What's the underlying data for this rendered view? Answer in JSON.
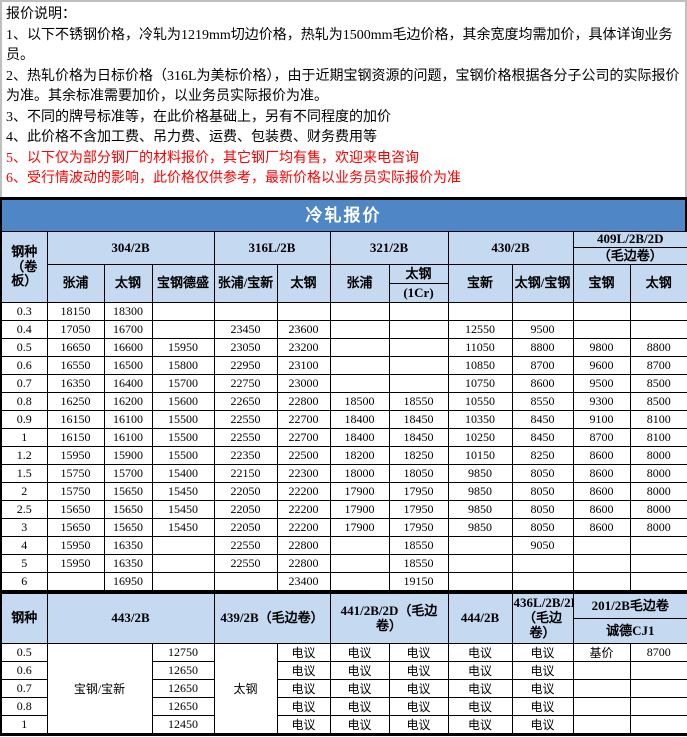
{
  "title": "冷轧报价",
  "colors": {
    "title_bg": "#4e86c6",
    "header_bg": "#c5d9f1",
    "warning_red": "#ff0000"
  },
  "notes": {
    "heading": "报价说明：",
    "n1": "1、以下不锈钢价格，冷轧为1219mm切边价格，热轧为1500mm毛边价格，其余宽度均需加价，具体详询业务员。",
    "n2": "2、热轧价格为日标价格（316L为美标价格），由于近期宝钢资源的问题，宝钢价格根据各分子公司的实际报价为准。其余标准需要加价，以业务员实际报价为准。",
    "n3": "3、不同的牌号标准等，在此价格基础上，另有不同程度的加价",
    "n4": "4、此价格不含加工费、吊力费、运费、包装费、财务费用等",
    "n5": "5、以下仅为部分钢厂的材料报价，其它钢厂均有售，欢迎来电咨询",
    "n6": "6、受行情波动的影响，此价格仅供参考，最新价格以业务员实际报价为准"
  },
  "t1": {
    "corner": "钢种（卷板）",
    "g304": "304/2B",
    "g316": "316L/2B",
    "g321": "321/2B",
    "g430": "430/2B",
    "g409": "409L/2B/2D",
    "g409_sub": "（毛边卷）",
    "m1": "张浦",
    "m2": "太钢",
    "m3": "宝钢德盛",
    "m4": "张浦/宝新",
    "m5": "太钢",
    "m6": "张浦",
    "m7": "太钢",
    "m7_sub": "(1Cr)",
    "m8": "宝新",
    "m9": "太钢/宝钢",
    "m10": "宝钢",
    "m11": "太钢",
    "rows": [
      [
        "0.3",
        "18150",
        "18300",
        "",
        "",
        "",
        "",
        "",
        "",
        "",
        "",
        ""
      ],
      [
        "0.4",
        "17050",
        "16700",
        "",
        "23450",
        "23600",
        "",
        "",
        "12550",
        "9500",
        "",
        ""
      ],
      [
        "0.5",
        "16650",
        "16600",
        "15950",
        "23050",
        "23200",
        "",
        "",
        "11050",
        "8800",
        "9800",
        "8800"
      ],
      [
        "0.6",
        "16550",
        "16500",
        "15800",
        "22950",
        "23100",
        "",
        "",
        "10850",
        "8700",
        "9600",
        "8700"
      ],
      [
        "0.7",
        "16350",
        "16400",
        "15700",
        "22750",
        "23000",
        "",
        "",
        "10750",
        "8600",
        "9500",
        "8500"
      ],
      [
        "0.8",
        "16250",
        "16200",
        "15600",
        "22650",
        "22800",
        "18500",
        "18550",
        "10550",
        "8550",
        "9300",
        "8500"
      ],
      [
        "0.9",
        "16150",
        "16100",
        "15500",
        "22550",
        "22700",
        "18400",
        "18450",
        "10350",
        "8450",
        "9100",
        "8100"
      ],
      [
        "1",
        "16150",
        "16100",
        "15500",
        "22550",
        "22700",
        "18400",
        "18450",
        "10250",
        "8450",
        "8700",
        "8100"
      ],
      [
        "1.2",
        "15950",
        "15900",
        "15500",
        "22350",
        "22500",
        "18200",
        "18250",
        "10150",
        "8250",
        "8600",
        "8000"
      ],
      [
        "1.5",
        "15750",
        "15700",
        "15400",
        "22150",
        "22300",
        "18000",
        "18050",
        "9850",
        "8050",
        "8600",
        "8000"
      ],
      [
        "2",
        "15750",
        "15650",
        "15450",
        "22050",
        "22200",
        "17900",
        "17950",
        "9850",
        "8050",
        "8600",
        "8000"
      ],
      [
        "2.5",
        "15650",
        "15650",
        "15450",
        "22050",
        "22200",
        "17900",
        "17950",
        "9850",
        "8050",
        "8600",
        "8000"
      ],
      [
        "3",
        "15650",
        "15650",
        "15450",
        "22050",
        "22200",
        "17900",
        "17950",
        "9850",
        "8050",
        "8600",
        "8000"
      ],
      [
        "4",
        "15950",
        "16350",
        "",
        "22550",
        "22800",
        "",
        "18550",
        "",
        "9050",
        "",
        ""
      ],
      [
        "5",
        "15950",
        "16350",
        "",
        "22550",
        "22800",
        "",
        "18550",
        "",
        "",
        "",
        ""
      ],
      [
        "6",
        "",
        "16950",
        "",
        "",
        "23400",
        "",
        "19150",
        "",
        "",
        "",
        ""
      ]
    ]
  },
  "t2": {
    "corner": "钢种",
    "g443": "443/2B",
    "g439": "439/2B（毛边卷）",
    "g441": "441/2B/2D（毛边卷）",
    "g444": "444/2B",
    "g436": "436L/2B/2D（毛边卷）",
    "g201": "201/2B毛边卷",
    "g201_sub": "诚德CJ1",
    "rows": [
      [
        "0.5",
        {
          "text": "宝钢/宝新",
          "colspan": 2,
          "rowspan": 5
        },
        "12750",
        {
          "text": "太钢",
          "rowspan": 5
        },
        "电议",
        "电议",
        "电议",
        "电议",
        "电议",
        "基价",
        "8700"
      ],
      [
        "0.6",
        "12650",
        "电议",
        "电议",
        "电议",
        "电议",
        "电议",
        "",
        ""
      ],
      [
        "0.7",
        "12650",
        "电议",
        "电议",
        "电议",
        "电议",
        "电议",
        "",
        ""
      ],
      [
        "0.8",
        "12650",
        "电议",
        "电议",
        "电议",
        "电议",
        "电议",
        "",
        ""
      ],
      [
        "1",
        "12450",
        "电议",
        "电议",
        "电议",
        "电议",
        "电议",
        "",
        ""
      ]
    ]
  }
}
